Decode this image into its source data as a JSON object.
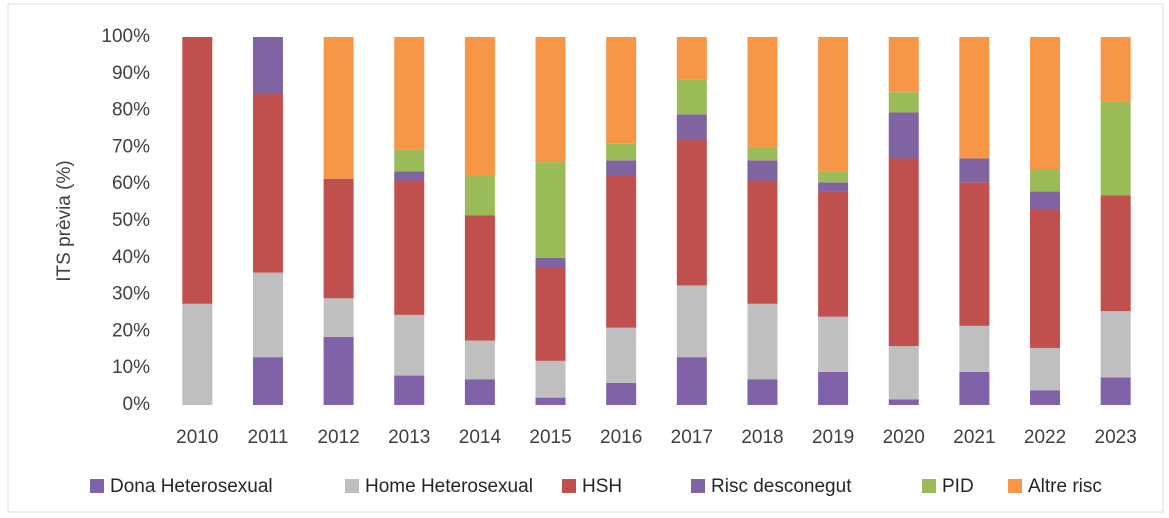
{
  "chart_data": {
    "type": "stacked_bar",
    "y_label": "ITS prèvia (%)",
    "categories": [
      "2010",
      "2011",
      "2012",
      "2013",
      "2014",
      "2015",
      "2016",
      "2017",
      "2018",
      "2019",
      "2020",
      "2021",
      "2022",
      "2023"
    ],
    "series": [
      {
        "name": "Dona Heterosexual",
        "color": "#7f62a8",
        "values": [
          0,
          13,
          18.5,
          8,
          7,
          2,
          6,
          13,
          7,
          9,
          1.5,
          9,
          4,
          7.5
        ]
      },
      {
        "name": "Home Heterosexual",
        "color": "#bfbfbf",
        "values": [
          27.5,
          23,
          10.5,
          16.5,
          10.5,
          10,
          15,
          19.5,
          20.5,
          15,
          14.5,
          12.5,
          11.5,
          18
        ]
      },
      {
        "name": "HSH",
        "color": "#c0504d",
        "values": [
          72.5,
          48.5,
          32.5,
          36.5,
          34,
          25.5,
          41.5,
          39.5,
          33.5,
          34,
          51,
          39,
          37.5,
          31.5
        ]
      },
      {
        "name": "Risc desconegut",
        "color": "#8064a2",
        "values": [
          0,
          15.5,
          0,
          2.5,
          0,
          2.5,
          4,
          7,
          5.5,
          2.5,
          12.5,
          6.5,
          5,
          0
        ]
      },
      {
        "name": "PID",
        "color": "#9bbb59",
        "values": [
          0,
          0,
          0,
          6,
          11,
          26,
          4.5,
          9.5,
          3.5,
          3,
          5.5,
          0,
          6,
          25.5
        ]
      },
      {
        "name": "Altre risc",
        "color": "#f79646",
        "values": [
          0,
          0,
          38.5,
          30.5,
          37.5,
          34,
          29,
          11.5,
          30,
          36.5,
          15,
          33,
          36,
          17.5
        ]
      }
    ],
    "ylim": [
      0,
      100
    ],
    "yticks": [
      {
        "value": 0,
        "label": "0%"
      },
      {
        "value": 10,
        "label": "10%"
      },
      {
        "value": 20,
        "label": "20%"
      },
      {
        "value": 30,
        "label": "30%"
      },
      {
        "value": 40,
        "label": "40%"
      },
      {
        "value": 50,
        "label": "50%"
      },
      {
        "value": 60,
        "label": "60%"
      },
      {
        "value": 70,
        "label": "70%"
      },
      {
        "value": 80,
        "label": "80%"
      },
      {
        "value": 90,
        "label": "90%"
      },
      {
        "value": 100,
        "label": "100%"
      }
    ],
    "grid": false
  }
}
